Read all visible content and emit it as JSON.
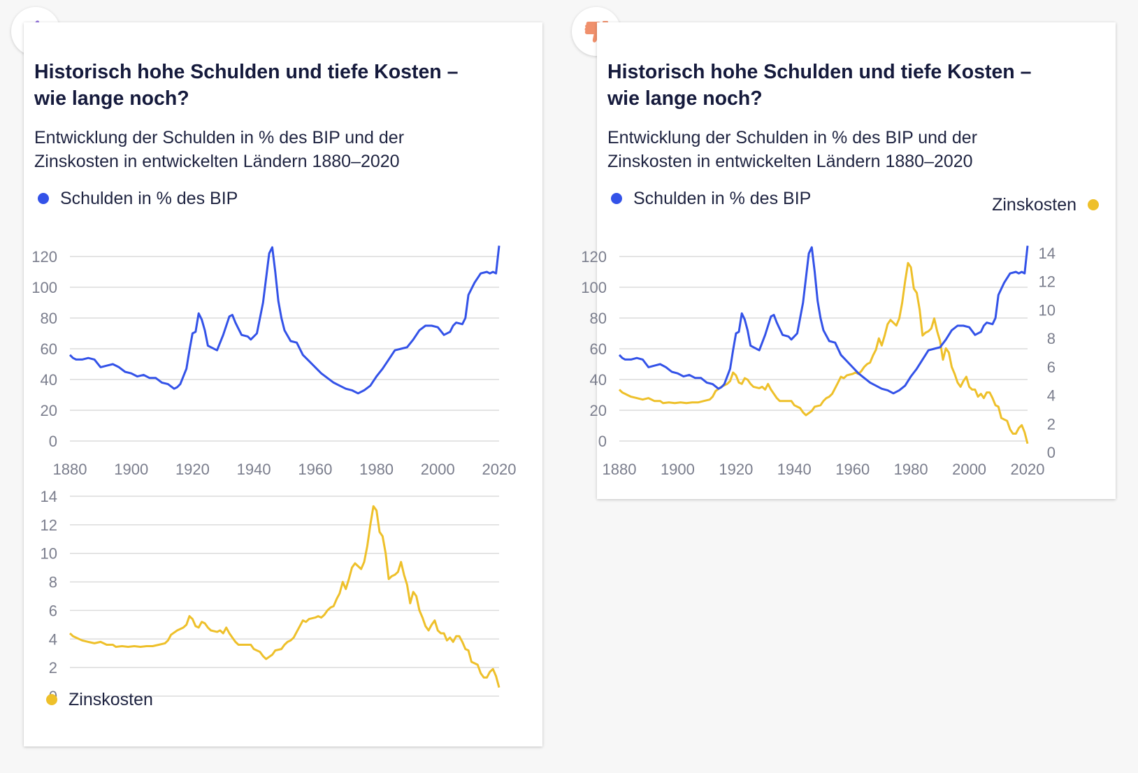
{
  "colors": {
    "debt": "#3352e8",
    "interest": "#eec02a",
    "grid": "#dcdcdc",
    "tick": "#7a7d8c"
  },
  "icons": {
    "good": "thumbs-up-icon",
    "bad": "thumbs-down-icon"
  },
  "card_good": {
    "title": "Historisch hohe Schulden und tiefe Kosten –\nwie lange noch?",
    "subtitle": "Entwicklung der Schulden in % des BIP und der\nZinskosten in entwickelten Ländern 1880–2020",
    "legend_debt": "Schulden in % des BIP",
    "legend_interest": "Zinskosten"
  },
  "card_bad": {
    "title": "Historisch hohe Schulden und tiefe Kosten –\nwie lange noch?",
    "subtitle": "Entwicklung der Schulden in % des BIP und der\nZinskosten in entwickelten Ländern 1880–2020",
    "legend_debt": "Schulden in % des BIP",
    "legend_interest": "Zinskosten"
  },
  "chart_data": [
    {
      "type": "line",
      "title": "",
      "xlabel": "",
      "ylabel": "",
      "xlim": [
        1880,
        2020
      ],
      "ylim": [
        0,
        120
      ],
      "xticks": [
        1880,
        1900,
        1920,
        1940,
        1960,
        1980,
        2000,
        2020
      ],
      "yticks": [
        0,
        20,
        40,
        60,
        80,
        100,
        120
      ],
      "grid": true,
      "series": [
        {
          "name": "Schulden in % des BIP",
          "points": [
            [
              1880,
              56
            ],
            [
              1881,
              54
            ],
            [
              1882,
              53
            ],
            [
              1884,
              53
            ],
            [
              1886,
              54
            ],
            [
              1888,
              53
            ],
            [
              1890,
              48
            ],
            [
              1892,
              49
            ],
            [
              1894,
              50
            ],
            [
              1896,
              48
            ],
            [
              1898,
              45
            ],
            [
              1900,
              44
            ],
            [
              1902,
              42
            ],
            [
              1904,
              43
            ],
            [
              1906,
              41
            ],
            [
              1908,
              41
            ],
            [
              1910,
              38
            ],
            [
              1912,
              37
            ],
            [
              1914,
              34
            ],
            [
              1915,
              35
            ],
            [
              1916,
              37
            ],
            [
              1918,
              47
            ],
            [
              1919,
              59
            ],
            [
              1920,
              70
            ],
            [
              1921,
              71
            ],
            [
              1922,
              83
            ],
            [
              1923,
              79
            ],
            [
              1924,
              72
            ],
            [
              1925,
              62
            ],
            [
              1926,
              61
            ],
            [
              1928,
              59
            ],
            [
              1930,
              69
            ],
            [
              1932,
              81
            ],
            [
              1933,
              82
            ],
            [
              1934,
              77
            ],
            [
              1935,
              73
            ],
            [
              1936,
              69
            ],
            [
              1938,
              68
            ],
            [
              1939,
              66
            ],
            [
              1941,
              70
            ],
            [
              1943,
              90
            ],
            [
              1945,
              122
            ],
            [
              1946,
              126
            ],
            [
              1947,
              110
            ],
            [
              1948,
              91
            ],
            [
              1949,
              80
            ],
            [
              1950,
              72
            ],
            [
              1952,
              65
            ],
            [
              1954,
              64
            ],
            [
              1956,
              56
            ],
            [
              1958,
              52
            ],
            [
              1960,
              48
            ],
            [
              1962,
              44
            ],
            [
              1964,
              41
            ],
            [
              1966,
              38
            ],
            [
              1968,
              36
            ],
            [
              1970,
              34
            ],
            [
              1972,
              33
            ],
            [
              1974,
              31
            ],
            [
              1976,
              33
            ],
            [
              1978,
              36
            ],
            [
              1980,
              42
            ],
            [
              1982,
              47
            ],
            [
              1984,
              53
            ],
            [
              1986,
              59
            ],
            [
              1988,
              60
            ],
            [
              1990,
              61
            ],
            [
              1992,
              66
            ],
            [
              1994,
              72
            ],
            [
              1996,
              75
            ],
            [
              1998,
              75
            ],
            [
              2000,
              74
            ],
            [
              2002,
              69
            ],
            [
              2004,
              71
            ],
            [
              2005,
              75
            ],
            [
              2006,
              77
            ],
            [
              2008,
              76
            ],
            [
              2009,
              80
            ],
            [
              2010,
              95
            ],
            [
              2012,
              103
            ],
            [
              2014,
              109
            ],
            [
              2016,
              110
            ],
            [
              2017,
              109
            ],
            [
              2018,
              110
            ],
            [
              2019,
              109
            ],
            [
              2020,
              127
            ]
          ]
        }
      ]
    },
    {
      "type": "line",
      "title": "",
      "xlabel": "",
      "ylabel": "",
      "xlim": [
        1880,
        2020
      ],
      "ylim": [
        0,
        14
      ],
      "yticks": [
        0,
        2,
        4,
        6,
        8,
        10,
        12,
        14
      ],
      "grid": true,
      "series": [
        {
          "name": "Zinskosten",
          "points": [
            [
              1880,
              4.4
            ],
            [
              1881,
              4.2
            ],
            [
              1882,
              4.1
            ],
            [
              1883,
              4.0
            ],
            [
              1884,
              3.9
            ],
            [
              1886,
              3.8
            ],
            [
              1888,
              3.7
            ],
            [
              1890,
              3.8
            ],
            [
              1892,
              3.6
            ],
            [
              1894,
              3.6
            ],
            [
              1895,
              3.45
            ],
            [
              1897,
              3.5
            ],
            [
              1899,
              3.45
            ],
            [
              1901,
              3.5
            ],
            [
              1903,
              3.45
            ],
            [
              1905,
              3.5
            ],
            [
              1907,
              3.5
            ],
            [
              1909,
              3.6
            ],
            [
              1911,
              3.7
            ],
            [
              1912,
              3.9
            ],
            [
              1913,
              4.3
            ],
            [
              1915,
              4.6
            ],
            [
              1917,
              4.8
            ],
            [
              1918,
              5.0
            ],
            [
              1919,
              5.6
            ],
            [
              1920,
              5.4
            ],
            [
              1921,
              4.9
            ],
            [
              1922,
              4.8
            ],
            [
              1923,
              5.2
            ],
            [
              1924,
              5.1
            ],
            [
              1925,
              4.8
            ],
            [
              1926,
              4.6
            ],
            [
              1928,
              4.5
            ],
            [
              1929,
              4.6
            ],
            [
              1930,
              4.4
            ],
            [
              1931,
              4.8
            ],
            [
              1932,
              4.4
            ],
            [
              1933,
              4.1
            ],
            [
              1934,
              3.8
            ],
            [
              1935,
              3.6
            ],
            [
              1937,
              3.6
            ],
            [
              1939,
              3.6
            ],
            [
              1940,
              3.3
            ],
            [
              1942,
              3.1
            ],
            [
              1943,
              2.8
            ],
            [
              1944,
              2.6
            ],
            [
              1945,
              2.75
            ],
            [
              1946,
              2.9
            ],
            [
              1947,
              3.2
            ],
            [
              1949,
              3.3
            ],
            [
              1950,
              3.6
            ],
            [
              1951,
              3.8
            ],
            [
              1952,
              3.9
            ],
            [
              1953,
              4.1
            ],
            [
              1954,
              4.5
            ],
            [
              1955,
              4.9
            ],
            [
              1956,
              5.3
            ],
            [
              1957,
              5.2
            ],
            [
              1958,
              5.4
            ],
            [
              1960,
              5.5
            ],
            [
              1961,
              5.6
            ],
            [
              1962,
              5.5
            ],
            [
              1963,
              5.7
            ],
            [
              1964,
              6.0
            ],
            [
              1965,
              6.2
            ],
            [
              1966,
              6.3
            ],
            [
              1967,
              6.8
            ],
            [
              1968,
              7.2
            ],
            [
              1969,
              8.0
            ],
            [
              1970,
              7.5
            ],
            [
              1971,
              8.2
            ],
            [
              1972,
              9.0
            ],
            [
              1973,
              9.3
            ],
            [
              1974,
              9.1
            ],
            [
              1975,
              8.9
            ],
            [
              1976,
              9.4
            ],
            [
              1977,
              10.5
            ],
            [
              1978,
              12.0
            ],
            [
              1979,
              13.3
            ],
            [
              1980,
              13.0
            ],
            [
              1981,
              11.5
            ],
            [
              1982,
              11.2
            ],
            [
              1983,
              10.0
            ],
            [
              1984,
              8.2
            ],
            [
              1985,
              8.4
            ],
            [
              1986,
              8.5
            ],
            [
              1987,
              8.7
            ],
            [
              1988,
              9.4
            ],
            [
              1989,
              8.5
            ],
            [
              1990,
              7.8
            ],
            [
              1991,
              6.5
            ],
            [
              1992,
              7.3
            ],
            [
              1993,
              7.0
            ],
            [
              1994,
              6.0
            ],
            [
              1995,
              5.5
            ],
            [
              1996,
              4.9
            ],
            [
              1997,
              4.6
            ],
            [
              1998,
              5.0
            ],
            [
              1999,
              5.3
            ],
            [
              2000,
              4.6
            ],
            [
              2001,
              4.4
            ],
            [
              2002,
              4.4
            ],
            [
              2003,
              3.9
            ],
            [
              2004,
              4.1
            ],
            [
              2005,
              3.8
            ],
            [
              2006,
              4.2
            ],
            [
              2007,
              4.2
            ],
            [
              2008,
              3.8
            ],
            [
              2009,
              3.3
            ],
            [
              2010,
              3.2
            ],
            [
              2011,
              2.4
            ],
            [
              2012,
              2.3
            ],
            [
              2013,
              2.2
            ],
            [
              2014,
              1.6
            ],
            [
              2015,
              1.3
            ],
            [
              2016,
              1.3
            ],
            [
              2017,
              1.7
            ],
            [
              2018,
              1.9
            ],
            [
              2019,
              1.4
            ],
            [
              2020,
              0.6
            ]
          ]
        }
      ]
    },
    {
      "type": "line",
      "title": "",
      "xlabel": "",
      "ylabel": "",
      "xlim": [
        1880,
        2020
      ],
      "ylim": [
        0,
        120
      ],
      "ylim_right": [
        0,
        14
      ],
      "xticks": [
        1880,
        1900,
        1920,
        1940,
        1960,
        1980,
        2000,
        2020
      ],
      "yticks": [
        0,
        20,
        40,
        60,
        80,
        100,
        120
      ],
      "yticks_right": [
        0,
        2,
        4,
        6,
        8,
        10,
        12,
        14
      ],
      "grid": true,
      "series": [
        {
          "name": "Schulden in % des BIP",
          "axis": "left",
          "same_as_chart": 0
        },
        {
          "name": "Zinskosten",
          "axis": "right",
          "same_as_chart": 1
        }
      ]
    }
  ]
}
